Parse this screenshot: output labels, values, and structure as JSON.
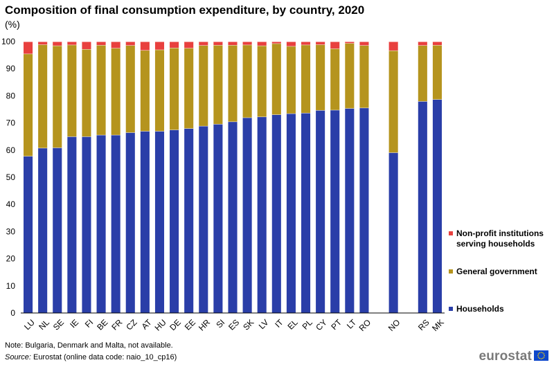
{
  "title": "Composition of final consumption expenditure, by country, 2020",
  "unit": "(%)",
  "note": "Note: Bulgaria, Denmark and Malta, not available.",
  "source_label": "Source:",
  "source_text": " Eurostat (online data code: naio_10_cp16)",
  "brand": "eurostat",
  "flag_icon": "eu-flag-icon",
  "colors": {
    "households": "#2a3ea8",
    "government": "#b5941e",
    "npish": "#e8403e",
    "axis": "#000000",
    "text": "#000000"
  },
  "chart_data": {
    "type": "bar",
    "stacked": true,
    "title": "Composition of final consumption expenditure, by country, 2020",
    "xlabel": "",
    "ylabel": "(%)",
    "ylim": [
      0,
      100
    ],
    "yticks": [
      0,
      10,
      20,
      30,
      40,
      50,
      60,
      70,
      80,
      90,
      100
    ],
    "grid": false,
    "legend_position": "right",
    "categories": [
      "LU",
      "NL",
      "SE",
      "IE",
      "FI",
      "BE",
      "FR",
      "CZ",
      "AT",
      "HU",
      "DE",
      "EE",
      "HR",
      "SI",
      "ES",
      "SK",
      "LV",
      "IT",
      "EL",
      "PL",
      "CY",
      "PT",
      "LT",
      "RO",
      "",
      "NO",
      "",
      "RS",
      "MK"
    ],
    "series": [
      {
        "name": "Households",
        "color": "#2a3ea8",
        "values": [
          57.8,
          60.8,
          60.9,
          65.0,
          65.0,
          65.6,
          65.6,
          66.5,
          67.0,
          67.0,
          67.5,
          68.0,
          68.9,
          69.6,
          70.5,
          72.0,
          72.3,
          73.1,
          73.5,
          73.7,
          74.7,
          74.8,
          75.4,
          75.6,
          null,
          59.1,
          null,
          78.0,
          78.7
        ]
      },
      {
        "name": "General government",
        "color": "#b5941e",
        "values": [
          37.7,
          38.1,
          37.6,
          33.8,
          32.2,
          33.1,
          32.0,
          32.1,
          29.8,
          30.0,
          30.2,
          29.6,
          29.7,
          29.1,
          28.2,
          26.8,
          26.2,
          26.2,
          24.8,
          25.1,
          24.2,
          22.6,
          24.0,
          23.0,
          null,
          37.6,
          null,
          20.6,
          20.0
        ]
      },
      {
        "name": "Non-profit institutions serving households",
        "color": "#e8403e",
        "values": [
          4.5,
          1.1,
          1.5,
          1.2,
          2.8,
          1.3,
          2.4,
          1.4,
          3.2,
          3.0,
          2.3,
          2.4,
          1.4,
          1.3,
          1.3,
          1.2,
          1.5,
          0.7,
          1.7,
          1.2,
          1.1,
          2.6,
          0.6,
          1.4,
          null,
          3.3,
          null,
          1.4,
          1.3
        ]
      }
    ],
    "legend": [
      {
        "label": "Non-profit institutions serving households",
        "lines": [
          "Non-profit institutions",
          "serving households"
        ],
        "color": "#e8403e"
      },
      {
        "label": "General government",
        "lines": [
          "General government"
        ],
        "color": "#b5941e"
      },
      {
        "label": "Households",
        "lines": [
          "Households"
        ],
        "color": "#2a3ea8"
      }
    ]
  }
}
